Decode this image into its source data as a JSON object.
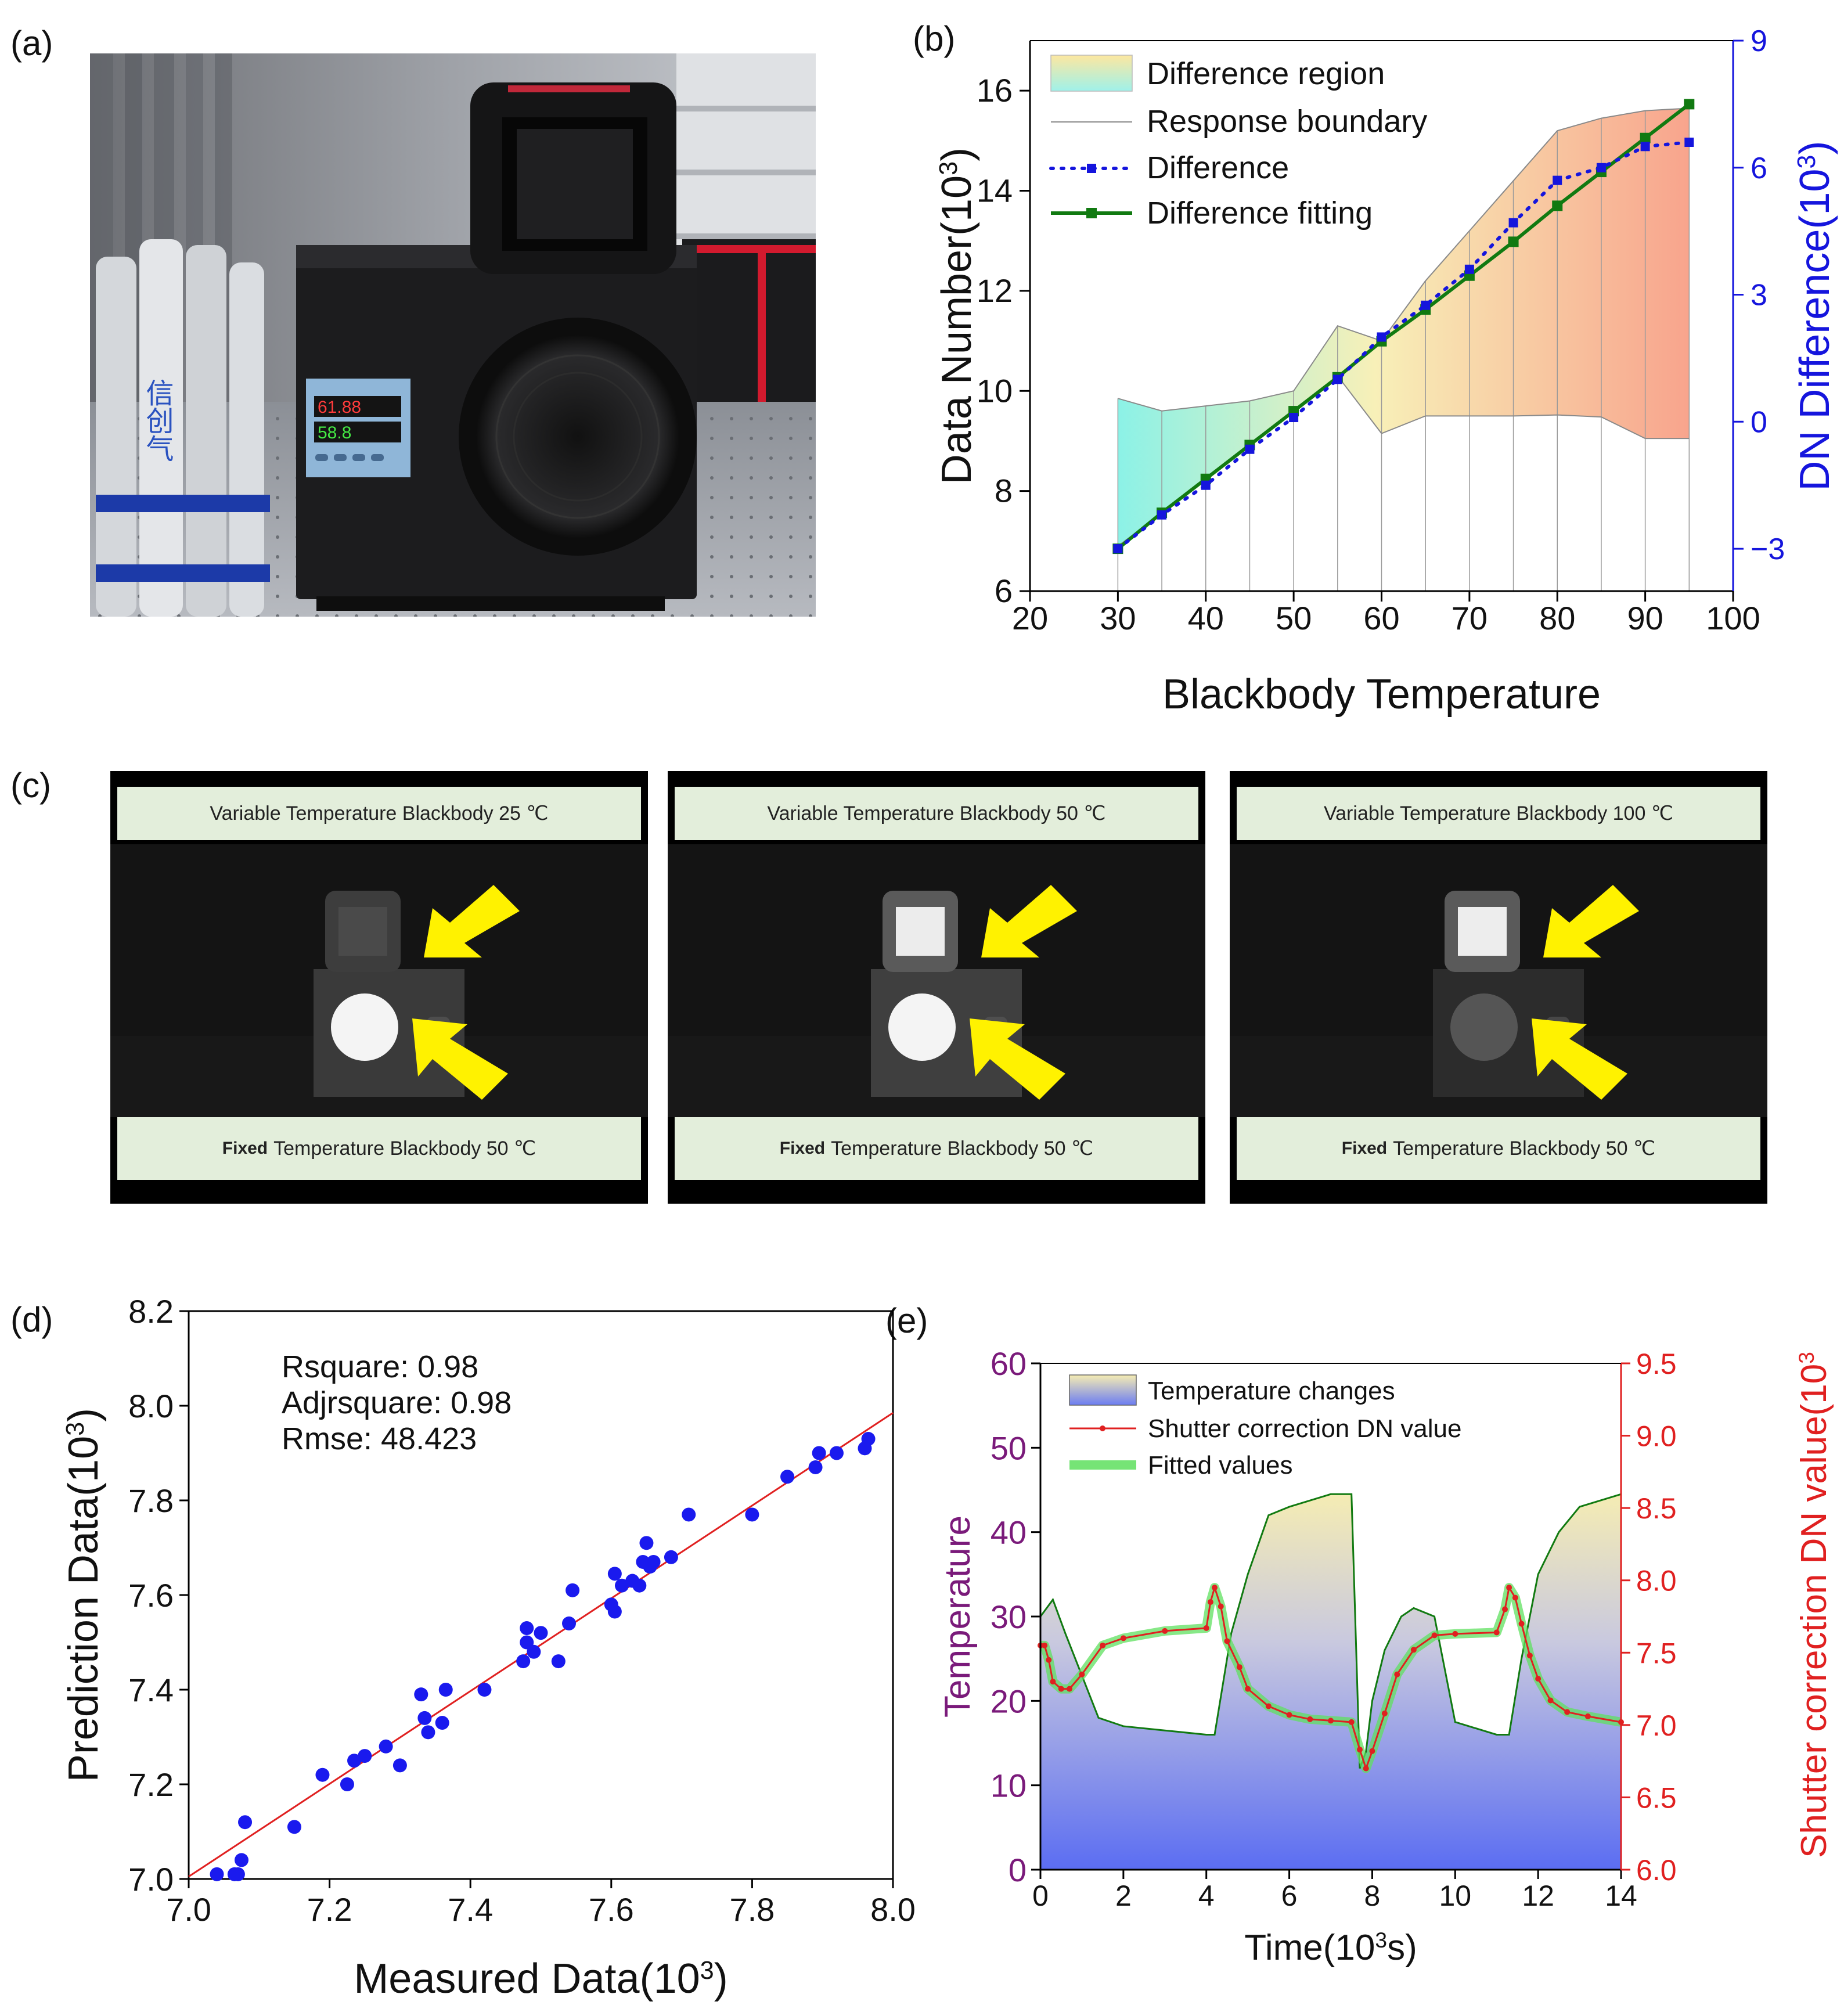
{
  "labels": {
    "a": "(a)",
    "b": "(b)",
    "c": "(c)",
    "d": "(d)",
    "e": "(e)"
  },
  "photo_a": {
    "controller_display_top": "61.88",
    "controller_display_bottom": "58.8",
    "cylinder_text": "信创气"
  },
  "ir_panels": [
    {
      "top_label": "Variable Temperature Blackbody 25 ℃",
      "bottom_bold": "Fixed",
      "bottom_rest": "Temperature Blackbody 50 ℃"
    },
    {
      "top_label": "Variable Temperature Blackbody 50 ℃",
      "bottom_bold": "Fixed",
      "bottom_rest": "Temperature Blackbody 50 ℃"
    },
    {
      "top_label": "Variable Temperature Blackbody 100 ℃",
      "bottom_bold": "Fixed",
      "bottom_rest": "Temperature Blackbody 50 ℃"
    }
  ],
  "colors": {
    "green": "#117a11",
    "blue": "#1515dd",
    "red": "#e02020",
    "purple": "#7a1a7a",
    "fit": "#5fe05f"
  },
  "chart_data": [
    {
      "id": "b",
      "type": "line",
      "xlabel": "Blackbody Temperature",
      "ylabel": "Data Number(10³)",
      "ylabel_main": "Data Number(10",
      "ylabel_sup": "3",
      "ylabel_close": ")",
      "y2label": "DN Difference(10³)",
      "y2label_main": "DN Difference(10",
      "y2label_sup": "3",
      "y2label_close": ")",
      "xlim": [
        20,
        100
      ],
      "ylim": [
        6,
        17
      ],
      "y2lim": [
        -4,
        9
      ],
      "xticks": [
        "20",
        "30",
        "40",
        "50",
        "60",
        "70",
        "80",
        "90",
        "100"
      ],
      "yticks": [
        "6",
        "8",
        "10",
        "12",
        "14",
        "16"
      ],
      "y2ticks": [
        "-3",
        "0",
        "3",
        "6",
        "9"
      ],
      "legend": [
        "Difference region",
        "Response boundary",
        "Difference",
        "Difference fitting"
      ],
      "x": [
        30,
        35,
        40,
        45,
        50,
        55,
        60,
        65,
        70,
        75,
        80,
        85,
        90,
        95
      ],
      "upper_boundary": [
        9.85,
        9.6,
        9.7,
        9.8,
        10.0,
        11.3,
        11.0,
        12.2,
        13.2,
        14.2,
        15.2,
        15.45,
        15.6,
        15.65
      ],
      "lower_boundary": [
        6.9,
        7.55,
        8.25,
        8.95,
        9.6,
        10.3,
        9.15,
        9.5,
        9.5,
        9.5,
        9.52,
        9.48,
        9.05,
        9.05
      ],
      "difference": {
        "name": "Difference",
        "x": [
          30,
          35,
          40,
          45,
          50,
          55,
          60,
          65,
          70,
          75,
          80,
          85,
          90,
          95
        ],
        "values": [
          -3.0,
          -2.2,
          -1.5,
          -0.65,
          0.1,
          1.0,
          2.0,
          2.75,
          3.6,
          4.7,
          5.7,
          6.0,
          6.5,
          6.6
        ]
      },
      "fitting": {
        "name": "Difference fitting",
        "x": [
          30,
          35,
          40,
          45,
          50,
          55,
          60,
          65,
          70,
          75,
          80,
          85,
          90,
          95
        ],
        "values": [
          -3.0,
          -2.15,
          -1.35,
          -0.55,
          0.25,
          1.05,
          1.9,
          2.65,
          3.45,
          4.25,
          5.1,
          5.9,
          6.7,
          7.5
        ]
      }
    },
    {
      "id": "d",
      "type": "scatter",
      "xlabel": "Measured Data(10³)",
      "xlabel_main": "Measured Data(10",
      "xlabel_sup": "3",
      "xlabel_close": ")",
      "ylabel": "Prediction Data(10³)",
      "ylabel_main": "Prediction Data(10",
      "ylabel_sup": "3",
      "ylabel_close": ")",
      "xlim": [
        7.0,
        8.0
      ],
      "ylim": [
        7.0,
        8.2
      ],
      "xticks": [
        "7.0",
        "7.2",
        "7.4",
        "7.6",
        "7.8",
        "8.0"
      ],
      "yticks": [
        "7.0",
        "7.2",
        "7.4",
        "7.6",
        "7.8",
        "8.0",
        "8.2"
      ],
      "annotations": [
        "Rsquare: 0.98",
        "Adjrsquare: 0.98",
        "Rmse: 48.423"
      ],
      "fit_line": {
        "x": [
          7.0,
          8.0
        ],
        "y": [
          7.005,
          7.985
        ]
      },
      "points": [
        [
          7.04,
          7.01
        ],
        [
          7.065,
          7.01
        ],
        [
          7.07,
          7.01
        ],
        [
          7.075,
          7.04
        ],
        [
          7.08,
          7.12
        ],
        [
          7.15,
          7.11
        ],
        [
          7.19,
          7.22
        ],
        [
          7.225,
          7.2
        ],
        [
          7.235,
          7.25
        ],
        [
          7.25,
          7.26
        ],
        [
          7.28,
          7.28
        ],
        [
          7.3,
          7.24
        ],
        [
          7.33,
          7.39
        ],
        [
          7.335,
          7.34
        ],
        [
          7.34,
          7.31
        ],
        [
          7.36,
          7.33
        ],
        [
          7.365,
          7.4
        ],
        [
          7.42,
          7.4
        ],
        [
          7.475,
          7.46
        ],
        [
          7.48,
          7.5
        ],
        [
          7.48,
          7.53
        ],
        [
          7.49,
          7.48
        ],
        [
          7.5,
          7.52
        ],
        [
          7.525,
          7.46
        ],
        [
          7.54,
          7.54
        ],
        [
          7.545,
          7.61
        ],
        [
          7.6,
          7.58
        ],
        [
          7.605,
          7.565
        ],
        [
          7.605,
          7.645
        ],
        [
          7.615,
          7.62
        ],
        [
          7.63,
          7.63
        ],
        [
          7.64,
          7.62
        ],
        [
          7.645,
          7.67
        ],
        [
          7.65,
          7.71
        ],
        [
          7.655,
          7.66
        ],
        [
          7.66,
          7.67
        ],
        [
          7.685,
          7.68
        ],
        [
          7.71,
          7.77
        ],
        [
          7.8,
          7.77
        ],
        [
          7.85,
          7.85
        ],
        [
          7.89,
          7.87
        ],
        [
          7.895,
          7.9
        ],
        [
          7.92,
          7.9
        ],
        [
          7.96,
          7.91
        ],
        [
          7.965,
          7.93
        ]
      ]
    },
    {
      "id": "e",
      "type": "line",
      "xlabel": "Time(10³s)",
      "xlabel_main": "Time(10",
      "xlabel_sup": "3",
      "xlabel_close": "s)",
      "ylabel": "Temperature",
      "y2label": "Shutter correction  DN value(10³",
      "y2label_main": "Shutter correction  DN value(10",
      "y2label_sup": "3",
      "xlim": [
        0,
        14
      ],
      "ylim": [
        0,
        60
      ],
      "y2lim": [
        6.0,
        9.5
      ],
      "xticks": [
        "0",
        "2",
        "4",
        "6",
        "8",
        "10",
        "12",
        "14"
      ],
      "yticks": [
        "0",
        "10",
        "20",
        "30",
        "40",
        "50",
        "60"
      ],
      "y2ticks": [
        "6.0",
        "6.5",
        "7.0",
        "7.5",
        "8.0",
        "8.5",
        "9.0",
        "9.5"
      ],
      "legend": [
        "Temperature changes",
        "Shutter correction DN value",
        "Fitted values"
      ],
      "temperature": {
        "x": [
          0,
          0.3,
          0.6,
          1.0,
          1.4,
          2.0,
          3.0,
          4.0,
          4.2,
          4.6,
          5.0,
          5.5,
          6.0,
          7.0,
          7.5,
          7.7,
          7.85,
          8.0,
          8.3,
          8.7,
          9.0,
          9.5,
          10.0,
          11.0,
          11.3,
          11.6,
          12.0,
          12.5,
          13.0,
          14.0
        ],
        "values": [
          30,
          32,
          28,
          23,
          18,
          17,
          16.5,
          16,
          16,
          28,
          35,
          42,
          43,
          44.5,
          44.5,
          12,
          14,
          20,
          26,
          30,
          31,
          30,
          17.5,
          16,
          16,
          25,
          35,
          40,
          43,
          44.5
        ]
      },
      "dn": {
        "x": [
          0,
          0.1,
          0.2,
          0.3,
          0.5,
          0.7,
          1.0,
          1.5,
          2.0,
          3.0,
          4.0,
          4.1,
          4.2,
          4.35,
          4.5,
          4.8,
          5.0,
          5.5,
          6.0,
          6.5,
          7.0,
          7.5,
          7.7,
          7.85,
          8.0,
          8.3,
          8.6,
          9.0,
          9.5,
          10.0,
          11.0,
          11.2,
          11.3,
          11.45,
          11.6,
          11.8,
          12.0,
          12.3,
          12.7,
          13.2,
          14.0
        ],
        "values": [
          7.55,
          7.55,
          7.45,
          7.3,
          7.25,
          7.25,
          7.35,
          7.55,
          7.6,
          7.65,
          7.67,
          7.85,
          7.95,
          7.82,
          7.58,
          7.4,
          7.25,
          7.13,
          7.07,
          7.04,
          7.03,
          7.02,
          6.83,
          6.7,
          6.82,
          7.08,
          7.35,
          7.52,
          7.62,
          7.63,
          7.64,
          7.8,
          7.95,
          7.88,
          7.7,
          7.48,
          7.32,
          7.17,
          7.09,
          7.06,
          7.02
        ]
      }
    }
  ]
}
